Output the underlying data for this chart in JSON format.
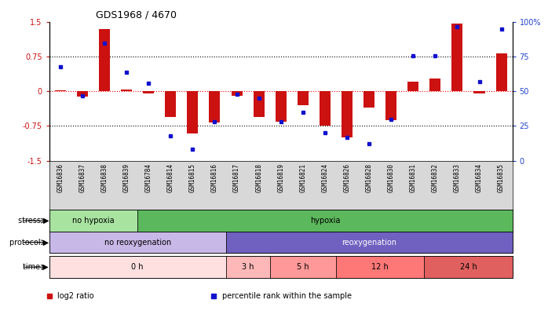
{
  "title": "GDS1968 / 4670",
  "samples": [
    "GSM16836",
    "GSM16837",
    "GSM16838",
    "GSM16839",
    "GSM16784",
    "GSM16814",
    "GSM16815",
    "GSM16816",
    "GSM16817",
    "GSM16818",
    "GSM16819",
    "GSM16821",
    "GSM16824",
    "GSM16826",
    "GSM16828",
    "GSM16830",
    "GSM16831",
    "GSM16832",
    "GSM16833",
    "GSM16834",
    "GSM16835"
  ],
  "log2_ratio": [
    0.02,
    -0.12,
    1.35,
    0.05,
    -0.05,
    -0.55,
    -0.92,
    -0.68,
    -0.1,
    -0.55,
    -0.65,
    -0.3,
    -0.75,
    -1.0,
    -0.35,
    -0.62,
    0.22,
    0.28,
    1.48,
    -0.05,
    0.82
  ],
  "percentile": [
    68,
    47,
    85,
    64,
    56,
    18,
    8,
    28,
    48,
    45,
    28,
    35,
    20,
    17,
    12,
    30,
    76,
    76,
    97,
    57,
    95
  ],
  "ylim_left": [
    -1.5,
    1.5
  ],
  "ylim_right": [
    0,
    100
  ],
  "yticks_left": [
    -1.5,
    -0.75,
    0,
    0.75,
    1.5
  ],
  "ytick_labels_left": [
    "-1.5",
    "-0.75",
    "0",
    "0.75",
    "1.5"
  ],
  "yticks_right": [
    0,
    25,
    50,
    75,
    100
  ],
  "ytick_labels_right": [
    "0",
    "25",
    "50",
    "75",
    "100%"
  ],
  "stress_groups": [
    {
      "label": "no hypoxia",
      "start": 0,
      "end": 4,
      "color": "#a8e4a0"
    },
    {
      "label": "hypoxia",
      "start": 4,
      "end": 21,
      "color": "#5cb85c"
    }
  ],
  "protocol_groups": [
    {
      "label": "no reoxygenation",
      "start": 0,
      "end": 8,
      "color": "#c8b8e8"
    },
    {
      "label": "reoxygenation",
      "start": 8,
      "end": 21,
      "color": "#7060c0"
    }
  ],
  "time_groups": [
    {
      "label": "0 h",
      "start": 0,
      "end": 8,
      "color": "#ffe0e0"
    },
    {
      "label": "3 h",
      "start": 8,
      "end": 10,
      "color": "#ffb8b8"
    },
    {
      "label": "5 h",
      "start": 10,
      "end": 13,
      "color": "#ff9898"
    },
    {
      "label": "12 h",
      "start": 13,
      "end": 17,
      "color": "#ff7878"
    },
    {
      "label": "24 h",
      "start": 17,
      "end": 21,
      "color": "#e06060"
    }
  ],
  "bar_color_red": "#cc1111",
  "bar_color_blue": "#1111cc",
  "legend_items": [
    {
      "label": "log2 ratio",
      "color": "#cc1111"
    },
    {
      "label": "percentile rank within the sample",
      "color": "#1111cc"
    }
  ],
  "background_color": "#ffffff",
  "xticklabel_bg": "#d8d8d8"
}
